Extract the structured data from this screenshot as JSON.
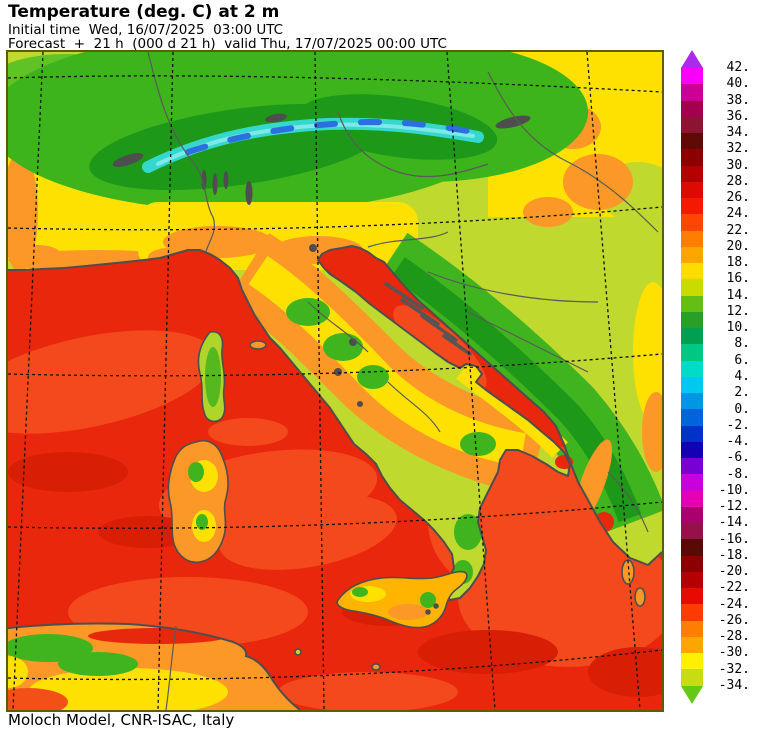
{
  "header": {
    "title": "Temperature (deg. C) at 2 m",
    "initial_time_line": "Initial time  Wed, 16/07/2025  03:00 UTC",
    "forecast_line": "Forecast  +  21 h  (000 d 21 h)  valid Thu, 17/07/2025 00:00 UTC"
  },
  "footer": {
    "model_credit": "Moloch Model, CNR-ISAC, Italy"
  },
  "colorbar": {
    "unit": "deg. C",
    "labels": [
      "42.",
      "40.",
      "38.",
      "36.",
      "34.",
      "32.",
      "30.",
      "28.",
      "26.",
      "24.",
      "22.",
      "20.",
      "18.",
      "16.",
      "14.",
      "12.",
      "10.",
      "8.",
      "6.",
      "4.",
      "2.",
      "0.",
      "-2.",
      "-4.",
      "-6.",
      "-8.",
      "-10.",
      "-12.",
      "-14.",
      "-16.",
      "-18.",
      "-20.",
      "-22.",
      "-24.",
      "-26.",
      "-28.",
      "-30.",
      "-32.",
      "-34."
    ],
    "cell_colors": [
      "#fa00fa",
      "#cc0096",
      "#a30050",
      "#8c1432",
      "#600a05",
      "#8c0000",
      "#b40000",
      "#dc0a00",
      "#f51900",
      "#ff4600",
      "#ff7d00",
      "#ffa500",
      "#ffdc00",
      "#c8dc00",
      "#64be14",
      "#28a028",
      "#00a050",
      "#00c882",
      "#00dcc8",
      "#00c8f0",
      "#0096e6",
      "#0064dc",
      "#0032c8",
      "#1400b4",
      "#7800d2",
      "#c800dc",
      "#e600b4",
      "#aa006e",
      "#96104a",
      "#5a0a05",
      "#8c0000",
      "#b40000",
      "#e60a00",
      "#ff3c00",
      "#ff7d00",
      "#ffa500",
      "#fff000",
      "#c8dc14"
    ],
    "arrow_top_color": "#ac29ee",
    "arrow_bottom_color": "#64c814"
  },
  "map": {
    "palette": {
      "sea_red": "#e8270c",
      "sea_red_light": "#f4491c",
      "sea_red_dark": "#d81f05",
      "land_yellow_green": "#bfd92e",
      "land_yellow": "#ffe100",
      "land_orange": "#fc9827",
      "land_green": "#3db31c",
      "land_green_dark": "#1e9818",
      "alpine_cyan": "#35d8cc",
      "alpine_blue": "#2e6fe0",
      "coast_gray": "#4e4e4e",
      "frame_olive": "#5d5d08"
    }
  }
}
